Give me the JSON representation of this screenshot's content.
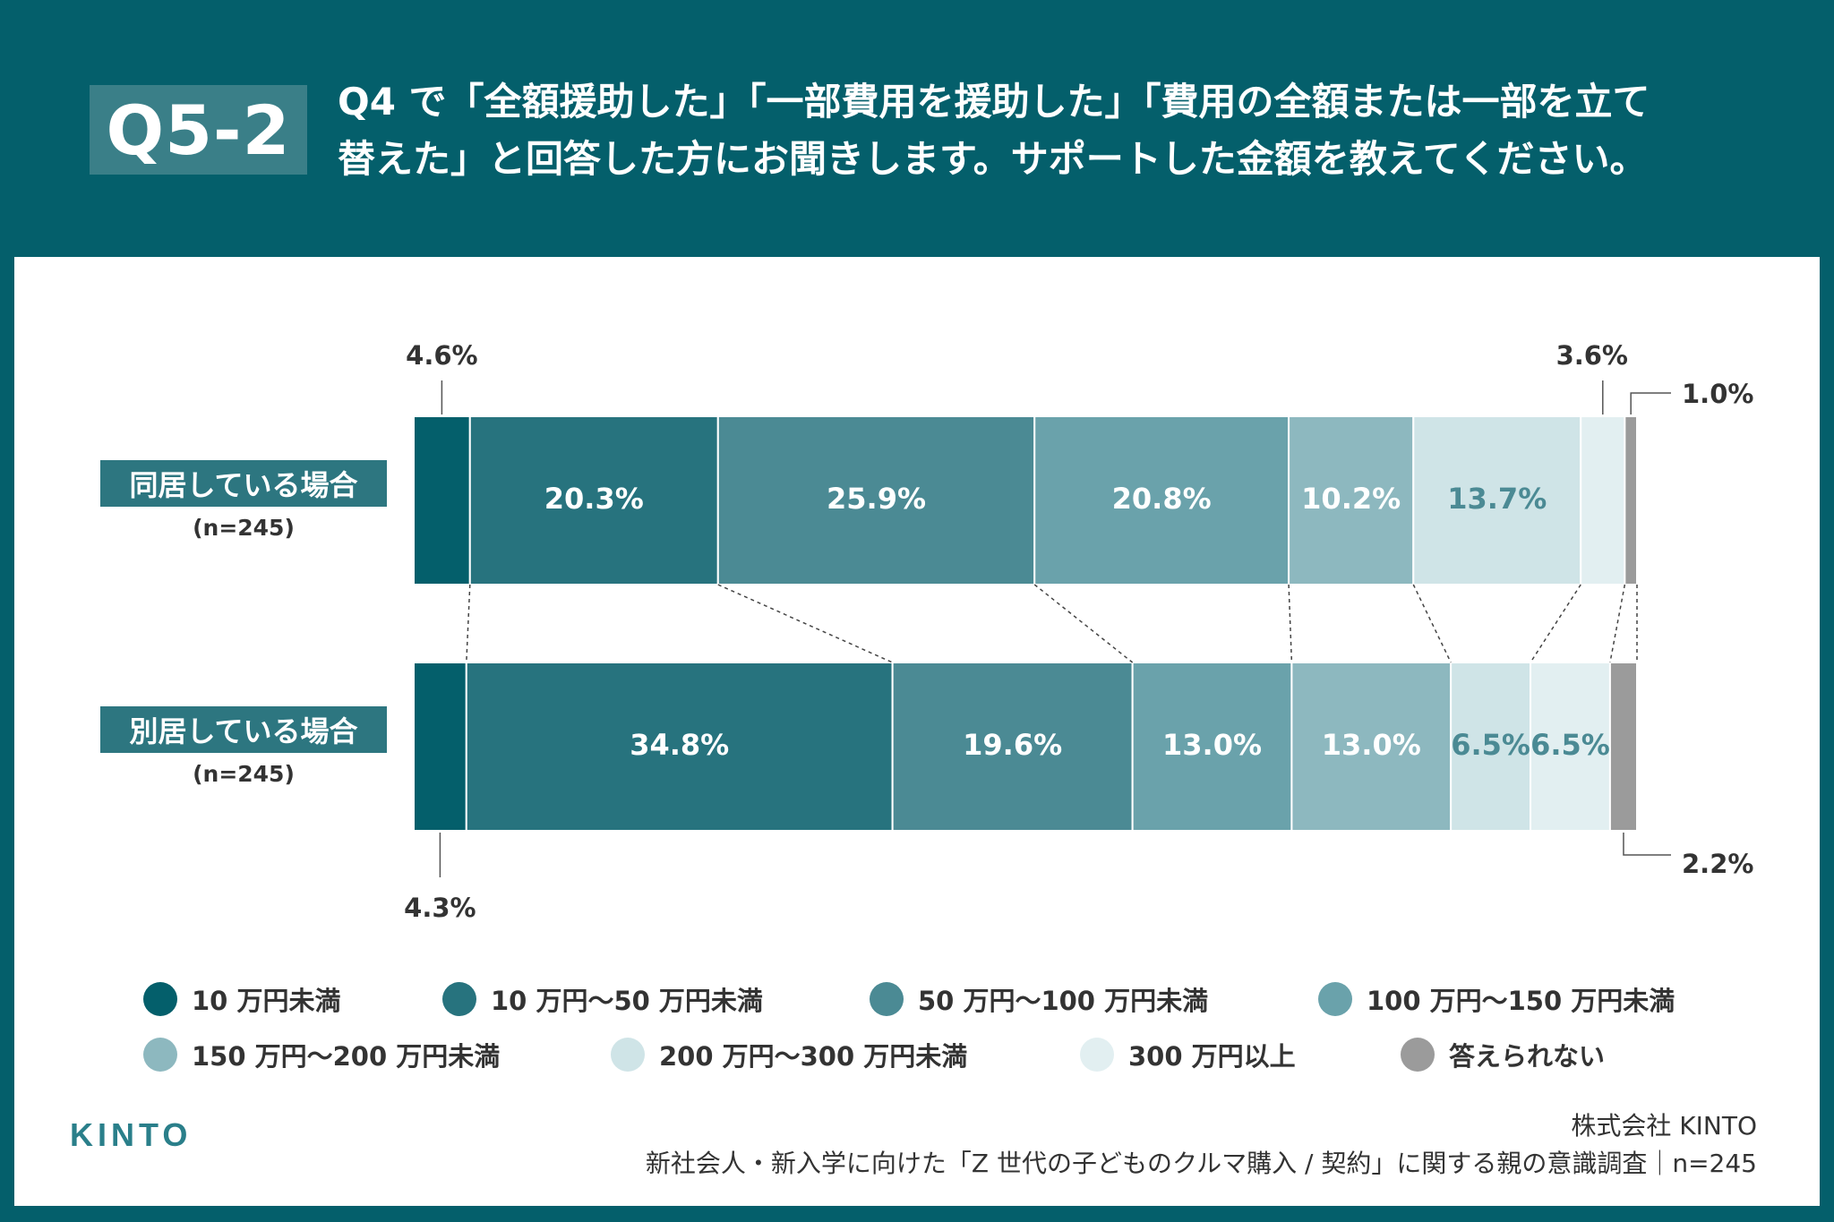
{
  "question": {
    "badge": "Q5-2",
    "line1": "Q4 で「全額援助した」「一部費用を援助した」「費用の全額または一部を立て",
    "line2": "替えた」と回答した方にお聞きします。サポートした金額を教えてください。"
  },
  "legend": [
    {
      "label": "10 万円未満",
      "color": "#045f6b"
    },
    {
      "label": "10 万円〜50 万円未満",
      "color": "#27737e"
    },
    {
      "label": "50 万円〜100 万円未満",
      "color": "#4b8a94"
    },
    {
      "label": "100 万円〜150 万円未満",
      "color": "#6aa2ab"
    },
    {
      "label": "150 万円〜200 万円未満",
      "color": "#8db8bf"
    },
    {
      "label": "200 万円〜300 万円未満",
      "color": "#cfe4e7"
    },
    {
      "label": "300 万円以上",
      "color": "#e2eff1"
    },
    {
      "label": "答えられない",
      "color": "#9b9b9b"
    }
  ],
  "rows": [
    {
      "label": "同居している場合",
      "n": "(n=245)"
    },
    {
      "label": "別居している場合",
      "n": "(n=245)"
    }
  ],
  "chart_data": {
    "type": "bar",
    "orientation": "horizontal",
    "stacked": true,
    "unit": "%",
    "categories": [
      "同居している場合",
      "別居している場合"
    ],
    "series": [
      {
        "name": "10 万円未満",
        "values": [
          4.6,
          4.3
        ],
        "labels": [
          "4.6%",
          "4.3%"
        ]
      },
      {
        "name": "10 万円〜50 万円未満",
        "values": [
          20.3,
          34.8
        ],
        "labels": [
          "20.3%",
          "34.8%"
        ]
      },
      {
        "name": "50 万円〜100 万円未満",
        "values": [
          25.9,
          19.6
        ],
        "labels": [
          "25.9%",
          "19.6%"
        ]
      },
      {
        "name": "100 万円〜150 万円未満",
        "values": [
          20.8,
          13.0
        ],
        "labels": [
          "20.8%",
          "13.0%"
        ]
      },
      {
        "name": "150 万円〜200 万円未満",
        "values": [
          10.2,
          13.0
        ],
        "labels": [
          "10.2%",
          "13.0%"
        ]
      },
      {
        "name": "200 万円〜300 万円未満",
        "values": [
          13.7,
          6.5
        ],
        "labels": [
          "13.7%",
          "6.5%"
        ]
      },
      {
        "name": "300 万円以上",
        "values": [
          3.6,
          6.5
        ],
        "labels": [
          "3.6%",
          "6.5%"
        ]
      },
      {
        "name": "答えられない",
        "values": [
          1.0,
          2.2
        ],
        "labels": [
          "1.0%",
          "2.2%"
        ]
      }
    ],
    "label_colors": [
      "#ffffff",
      "#ffffff",
      "#ffffff",
      "#ffffff",
      "#ffffff",
      "#4b8a94",
      "#4b8a94",
      "#ffffff"
    ]
  },
  "footer": {
    "logo": "KINTO",
    "company": "株式会社 KINTO",
    "survey": "新社会人・新入学に向けた「Z 世代の子どものクルマ購入 / 契約」に関する親の意識調査｜n=245"
  }
}
